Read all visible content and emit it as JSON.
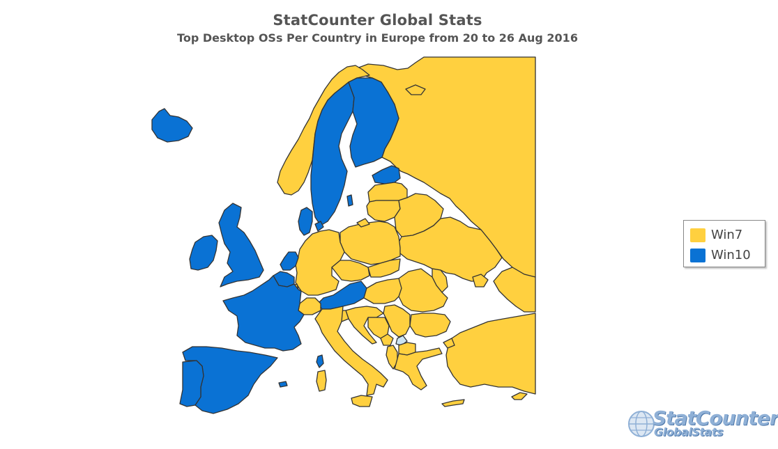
{
  "header": {
    "title": "StatCounter Global Stats",
    "subtitle": "Top Desktop OSs Per Country in Europe from 20 to 26 Aug 2016"
  },
  "legend": {
    "items": [
      {
        "label": "Win7",
        "color": "#FFD03F"
      },
      {
        "label": "Win10",
        "color": "#0A72D4"
      }
    ]
  },
  "colors": {
    "win7": "#FFD03F",
    "win10": "#0A72D4",
    "other": "#CCE4F3",
    "border": "#333333"
  },
  "map_data": {
    "type": "choropleth",
    "region": "Europe",
    "categories": [
      "Win7",
      "Win10"
    ],
    "countries": [
      {
        "name": "Iceland",
        "os": "Win10"
      },
      {
        "name": "Ireland",
        "os": "Win10"
      },
      {
        "name": "United Kingdom",
        "os": "Win10"
      },
      {
        "name": "France",
        "os": "Win10"
      },
      {
        "name": "Spain",
        "os": "Win10"
      },
      {
        "name": "Portugal",
        "os": "Win10"
      },
      {
        "name": "Belgium",
        "os": "Win10"
      },
      {
        "name": "Netherlands",
        "os": "Win10"
      },
      {
        "name": "Austria",
        "os": "Win10"
      },
      {
        "name": "Sweden",
        "os": "Win10"
      },
      {
        "name": "Finland",
        "os": "Win10"
      },
      {
        "name": "Estonia",
        "os": "Win10"
      },
      {
        "name": "Denmark",
        "os": "Win10"
      },
      {
        "name": "Norway",
        "os": "Win7"
      },
      {
        "name": "Russia",
        "os": "Win7"
      },
      {
        "name": "Latvia",
        "os": "Win7"
      },
      {
        "name": "Lithuania",
        "os": "Win7"
      },
      {
        "name": "Belarus",
        "os": "Win7"
      },
      {
        "name": "Poland",
        "os": "Win7"
      },
      {
        "name": "Germany",
        "os": "Win7"
      },
      {
        "name": "Czech Republic",
        "os": "Win7"
      },
      {
        "name": "Slovakia",
        "os": "Win7"
      },
      {
        "name": "Hungary",
        "os": "Win7"
      },
      {
        "name": "Ukraine",
        "os": "Win7"
      },
      {
        "name": "Moldova",
        "os": "Win7"
      },
      {
        "name": "Romania",
        "os": "Win7"
      },
      {
        "name": "Bulgaria",
        "os": "Win7"
      },
      {
        "name": "Serbia",
        "os": "Win7"
      },
      {
        "name": "Croatia",
        "os": "Win7"
      },
      {
        "name": "Bosnia and Herzegovina",
        "os": "Win7"
      },
      {
        "name": "Montenegro",
        "os": "Win7"
      },
      {
        "name": "Albania",
        "os": "Win7"
      },
      {
        "name": "Macedonia",
        "os": "Win7"
      },
      {
        "name": "Greece",
        "os": "Win7"
      },
      {
        "name": "Turkey",
        "os": "Win7"
      },
      {
        "name": "Italy",
        "os": "Win7"
      },
      {
        "name": "Switzerland",
        "os": "Win7"
      },
      {
        "name": "Slovenia",
        "os": "Win7"
      },
      {
        "name": "Luxembourg",
        "os": "Win7"
      },
      {
        "name": "Cyprus",
        "os": "Win7"
      },
      {
        "name": "Kosovo",
        "os": "Other"
      }
    ]
  },
  "logo": {
    "brand": "StatCounter",
    "sub": "GlobalStats"
  }
}
